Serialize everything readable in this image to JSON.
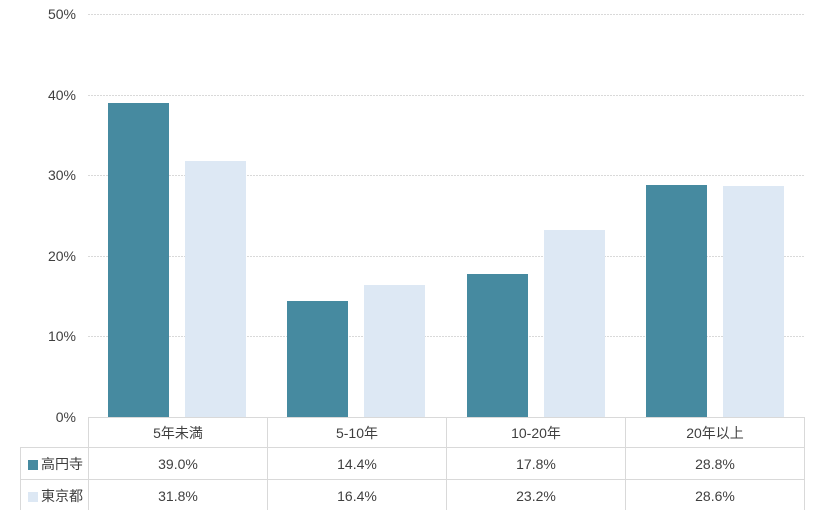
{
  "chart_data": {
    "type": "bar",
    "categories": [
      "5年未満",
      "5-10年",
      "10-20年",
      "20年以上"
    ],
    "series": [
      {
        "name": "高円寺",
        "color": "#468aa0",
        "values": [
          39.0,
          14.4,
          17.8,
          28.8
        ],
        "value_labels": [
          "39.0%",
          "14.4%",
          "17.8%",
          "28.8%"
        ]
      },
      {
        "name": "東京都",
        "color": "#dde8f4",
        "values": [
          31.8,
          16.4,
          23.2,
          28.6
        ],
        "value_labels": [
          "31.8%",
          "16.4%",
          "23.2%",
          "28.6%"
        ]
      }
    ],
    "ylim": [
      0,
      50
    ],
    "yticks": [
      0,
      10,
      20,
      30,
      40,
      50
    ],
    "ytick_labels": [
      "0%",
      "10%",
      "20%",
      "30%",
      "40%",
      "50%"
    ],
    "grid": true,
    "legend_position": "data-table-left",
    "gridline_color": "#d9d9d9",
    "table_border_color": "#d9d9d9",
    "text_color": "#3f3f3f"
  }
}
